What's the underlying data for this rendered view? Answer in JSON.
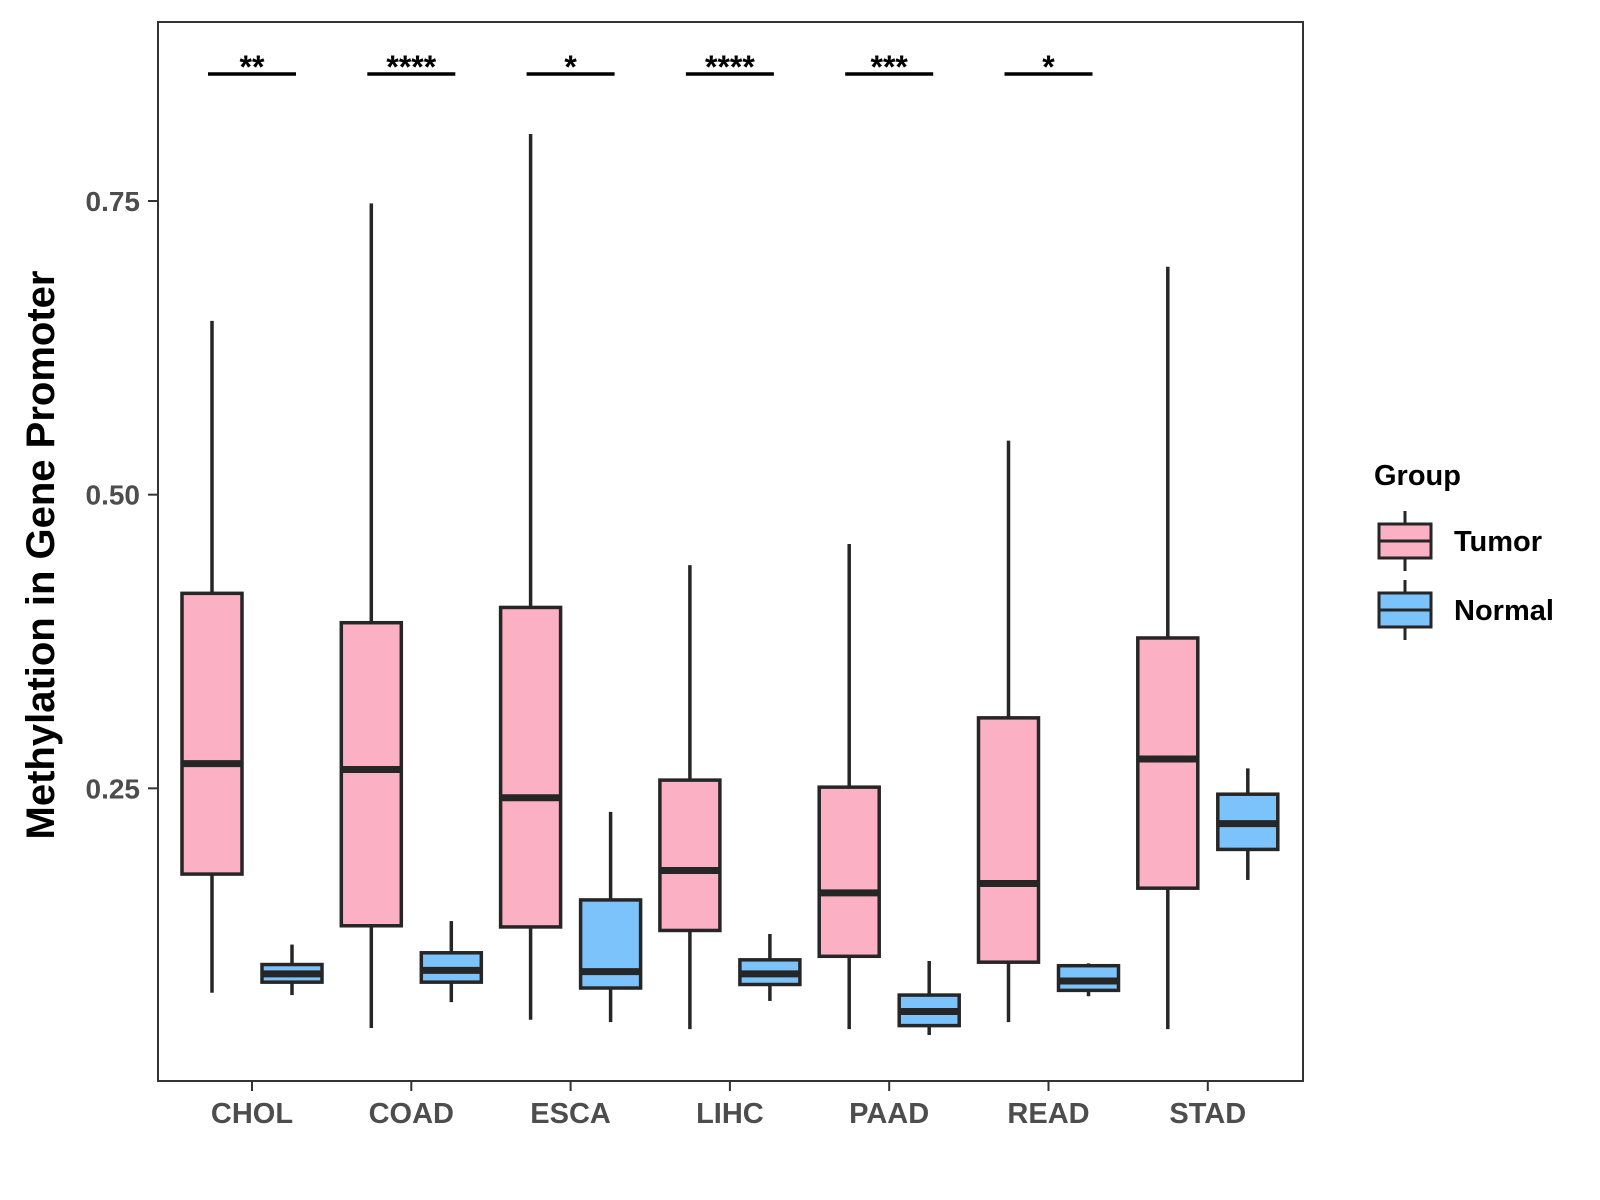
{
  "chart_data": {
    "type": "boxplot",
    "title": "",
    "xlabel": "",
    "ylabel": "Methylation in Gene Promoter",
    "ylim": [
      0.0,
      0.9
    ],
    "yticks": [
      0.25,
      0.5,
      0.75
    ],
    "ytick_labels": [
      "0.25",
      "0.50",
      "0.75"
    ],
    "categories": [
      "CHOL",
      "COAD",
      "ESCA",
      "LIHC",
      "PAAD",
      "READ",
      "STAD"
    ],
    "legend": {
      "title": "Group",
      "position": "right",
      "entries": [
        {
          "name": "Tumor",
          "color": "#fbb0c3"
        },
        {
          "name": "Normal",
          "color": "#7cc3fb"
        }
      ]
    },
    "series": [
      {
        "name": "Tumor",
        "color": "#fbb0c3",
        "boxes": [
          {
            "category": "CHOL",
            "min": 0.076,
            "q1": 0.177,
            "median": 0.271,
            "q3": 0.416,
            "max": 0.648
          },
          {
            "category": "COAD",
            "min": 0.046,
            "q1": 0.133,
            "median": 0.266,
            "q3": 0.391,
            "max": 0.748
          },
          {
            "category": "ESCA",
            "min": 0.053,
            "q1": 0.132,
            "median": 0.242,
            "q3": 0.404,
            "max": 0.807
          },
          {
            "category": "LIHC",
            "min": 0.045,
            "q1": 0.129,
            "median": 0.18,
            "q3": 0.257,
            "max": 0.44
          },
          {
            "category": "PAAD",
            "min": 0.045,
            "q1": 0.107,
            "median": 0.161,
            "q3": 0.251,
            "max": 0.458
          },
          {
            "category": "READ",
            "min": 0.051,
            "q1": 0.102,
            "median": 0.169,
            "q3": 0.31,
            "max": 0.546
          },
          {
            "category": "STAD",
            "min": 0.045,
            "q1": 0.165,
            "median": 0.275,
            "q3": 0.378,
            "max": 0.694
          }
        ]
      },
      {
        "name": "Normal",
        "color": "#7cc3fb",
        "boxes": [
          {
            "category": "CHOL",
            "min": 0.074,
            "q1": 0.085,
            "median": 0.092,
            "q3": 0.1,
            "max": 0.117
          },
          {
            "category": "COAD",
            "min": 0.068,
            "q1": 0.085,
            "median": 0.095,
            "q3": 0.11,
            "max": 0.137
          },
          {
            "category": "ESCA",
            "min": 0.051,
            "q1": 0.08,
            "median": 0.094,
            "q3": 0.155,
            "max": 0.23
          },
          {
            "category": "LIHC",
            "min": 0.069,
            "q1": 0.083,
            "median": 0.092,
            "q3": 0.104,
            "max": 0.126
          },
          {
            "category": "PAAD",
            "min": 0.04,
            "q1": 0.048,
            "median": 0.06,
            "q3": 0.074,
            "max": 0.103
          },
          {
            "category": "READ",
            "min": 0.073,
            "q1": 0.078,
            "median": 0.086,
            "q3": 0.099,
            "max": 0.101
          },
          {
            "category": "STAD",
            "min": 0.172,
            "q1": 0.198,
            "median": 0.22,
            "q3": 0.245,
            "max": 0.267
          }
        ]
      }
    ],
    "significance": [
      {
        "category": "CHOL",
        "label": "**"
      },
      {
        "category": "COAD",
        "label": "****"
      },
      {
        "category": "ESCA",
        "label": "*"
      },
      {
        "category": "LIHC",
        "label": "****"
      },
      {
        "category": "PAAD",
        "label": "***"
      },
      {
        "category": "READ",
        "label": "*"
      }
    ]
  }
}
